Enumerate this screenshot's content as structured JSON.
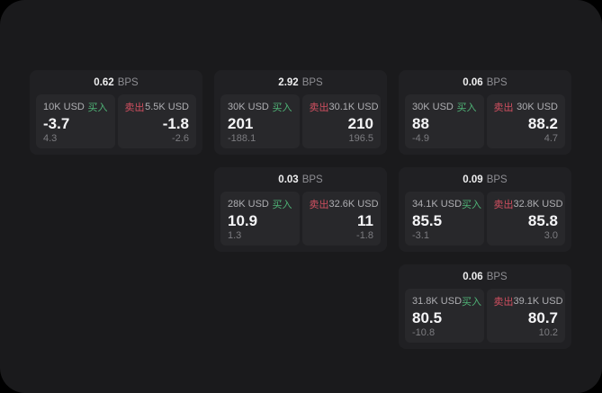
{
  "page": {
    "bg_outer": "#000000",
    "bg_panel": "#1a1a1c",
    "card_bg": "#202023",
    "subpanel_bg": "#28282b"
  },
  "labels": {
    "bps": "BPS",
    "buy": "买入",
    "sell": "卖出"
  },
  "colors": {
    "buy": "#4fb477",
    "sell": "#d04f60"
  },
  "cards": [
    {
      "bps": "0.62",
      "buy": {
        "amount": "10K USD",
        "price": "-3.7",
        "delta": "4.3"
      },
      "sell": {
        "amount": "5.5K USD",
        "price": "-1.8",
        "delta": "-2.6"
      }
    },
    {
      "bps": "2.92",
      "buy": {
        "amount": "30K USD",
        "price": "201",
        "delta": "-188.1"
      },
      "sell": {
        "amount": "30.1K USD",
        "price": "210",
        "delta": "196.5"
      }
    },
    {
      "bps": "0.06",
      "buy": {
        "amount": "30K USD",
        "price": "88",
        "delta": "-4.9"
      },
      "sell": {
        "amount": "30K USD",
        "price": "88.2",
        "delta": "4.7"
      }
    },
    {
      "bps": "0.03",
      "buy": {
        "amount": "28K USD",
        "price": "10.9",
        "delta": "1.3"
      },
      "sell": {
        "amount": "32.6K USD",
        "price": "11",
        "delta": "-1.8"
      }
    },
    {
      "bps": "0.09",
      "buy": {
        "amount": "34.1K USD",
        "price": "85.5",
        "delta": "-3.1"
      },
      "sell": {
        "amount": "32.8K USD",
        "price": "85.8",
        "delta": "3.0"
      }
    },
    {
      "bps": "0.06",
      "buy": {
        "amount": "31.8K USD",
        "price": "80.5",
        "delta": "-10.8"
      },
      "sell": {
        "amount": "39.1K USD",
        "price": "80.7",
        "delta": "10.2"
      }
    }
  ]
}
